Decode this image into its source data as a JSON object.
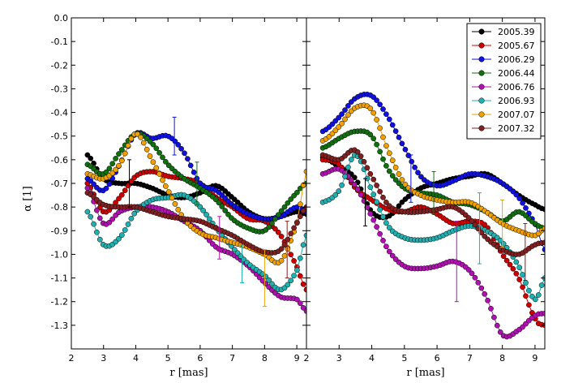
{
  "chart_data": {
    "type": "line",
    "xlabel": "r [mas]",
    "ylabel": "α [1]",
    "xlim": [
      2.0,
      9.3
    ],
    "ylim": [
      -1.4,
      0.0
    ],
    "x_ticks": [
      "2",
      "3",
      "4",
      "5",
      "6",
      "7",
      "8",
      "9"
    ],
    "y_ticks": [
      "0.0",
      "-0.1",
      "-0.2",
      "-0.3",
      "-0.4",
      "-0.5",
      "-0.6",
      "-0.7",
      "-0.8",
      "-0.9",
      "-1.0",
      "-1.1",
      "-1.2",
      "-1.3"
    ],
    "grid": false,
    "legend_position": "top-right",
    "series_style": {
      "colors": [
        "#000000",
        "#d00000",
        "#1010e0",
        "#107010",
        "#b010b0",
        "#20b0b0",
        "#f0a000",
        "#802020"
      ]
    },
    "panels": [
      {
        "series": [
          {
            "name": "2005.39",
            "x": [
              2.5,
              3.0,
              3.5,
              4.0,
              4.5,
              5.0,
              5.5,
              6.0,
              6.5,
              7.0,
              7.5,
              8.0,
              8.5,
              9.0,
              9.3
            ],
            "y": [
              -0.58,
              -0.68,
              -0.7,
              -0.7,
              -0.72,
              -0.75,
              -0.76,
              -0.74,
              -0.71,
              -0.76,
              -0.82,
              -0.85,
              -0.84,
              -0.82,
              -0.83
            ]
          },
          {
            "name": "2005.67",
            "x": [
              2.5,
              3.0,
              3.5,
              4.0,
              4.5,
              5.0,
              5.5,
              6.0,
              6.5,
              7.0,
              7.5,
              8.0,
              8.5,
              9.0,
              9.3
            ],
            "y": [
              -0.7,
              -0.82,
              -0.76,
              -0.67,
              -0.65,
              -0.67,
              -0.68,
              -0.7,
              -0.76,
              -0.8,
              -0.85,
              -0.86,
              -0.92,
              -1.05,
              -1.15
            ]
          },
          {
            "name": "2006.29",
            "x": [
              2.5,
              3.0,
              3.5,
              4.0,
              4.5,
              5.0,
              5.5,
              6.0,
              6.5,
              7.0,
              7.5,
              8.0,
              8.5,
              9.0,
              9.3
            ],
            "y": [
              -0.68,
              -0.73,
              -0.62,
              -0.49,
              -0.51,
              -0.5,
              -0.57,
              -0.7,
              -0.73,
              -0.79,
              -0.83,
              -0.85,
              -0.84,
              -0.8,
              -0.82
            ]
          },
          {
            "name": "2006.44",
            "x": [
              2.5,
              3.0,
              3.5,
              4.0,
              4.5,
              5.0,
              5.5,
              6.0,
              6.5,
              7.0,
              7.5,
              8.0,
              8.5,
              9.0,
              9.3
            ],
            "y": [
              -0.62,
              -0.66,
              -0.57,
              -0.49,
              -0.53,
              -0.62,
              -0.68,
              -0.72,
              -0.77,
              -0.85,
              -0.89,
              -0.9,
              -0.82,
              -0.74,
              -0.7
            ]
          },
          {
            "name": "2006.76",
            "x": [
              2.5,
              3.0,
              3.5,
              4.0,
              4.5,
              5.0,
              5.5,
              6.0,
              6.5,
              7.0,
              7.5,
              8.0,
              8.5,
              9.0,
              9.3
            ],
            "y": [
              -0.72,
              -0.87,
              -0.82,
              -0.8,
              -0.8,
              -0.82,
              -0.86,
              -0.9,
              -0.97,
              -1.0,
              -1.05,
              -1.12,
              -1.18,
              -1.19,
              -1.24
            ]
          },
          {
            "name": "2006.93",
            "x": [
              2.5,
              3.0,
              3.5,
              4.0,
              4.5,
              5.0,
              5.5,
              6.0,
              6.5,
              7.0,
              7.5,
              8.0,
              8.5,
              9.0,
              9.3
            ],
            "y": [
              -0.82,
              -0.96,
              -0.93,
              -0.82,
              -0.77,
              -0.76,
              -0.75,
              -0.8,
              -0.89,
              -0.97,
              -1.04,
              -1.09,
              -1.15,
              -1.07,
              -0.92
            ]
          },
          {
            "name": "2007.07",
            "x": [
              2.5,
              3.0,
              3.5,
              4.0,
              4.5,
              5.0,
              5.5,
              6.0,
              6.5,
              7.0,
              7.5,
              8.0,
              8.5,
              9.0,
              9.3
            ],
            "y": [
              -0.66,
              -0.68,
              -0.62,
              -0.49,
              -0.6,
              -0.73,
              -0.85,
              -0.91,
              -0.93,
              -0.95,
              -0.97,
              -1.0,
              -1.03,
              -0.87,
              -0.65
            ]
          },
          {
            "name": "2007.32",
            "x": [
              2.5,
              3.0,
              3.5,
              4.0,
              4.5,
              5.0,
              5.5,
              6.0,
              6.5,
              7.0,
              7.5,
              8.0,
              8.5,
              9.0,
              9.3
            ],
            "y": [
              -0.74,
              -0.79,
              -0.8,
              -0.8,
              -0.82,
              -0.84,
              -0.85,
              -0.86,
              -0.89,
              -0.92,
              -0.96,
              -0.99,
              -0.98,
              -0.87,
              -0.8
            ]
          }
        ],
        "error_bars": [
          {
            "series": "2005.39",
            "x": 3.8,
            "y": -0.7,
            "err": 0.1
          },
          {
            "series": "2006.29",
            "x": 5.2,
            "y": -0.5,
            "err": 0.08
          },
          {
            "series": "2006.44",
            "x": 5.9,
            "y": -0.7,
            "err": 0.09
          },
          {
            "series": "2006.76",
            "x": 6.6,
            "y": -0.93,
            "err": 0.09
          },
          {
            "series": "2006.93",
            "x": 7.3,
            "y": -1.04,
            "err": 0.08
          },
          {
            "series": "2007.07",
            "x": 8.0,
            "y": -1.1,
            "err": 0.12
          },
          {
            "series": "2007.32",
            "x": 8.7,
            "y": -0.98,
            "err": 0.12
          }
        ]
      },
      {
        "series": [
          {
            "name": "2005.39",
            "x": [
              2.5,
              3.0,
              3.5,
              4.0,
              4.5,
              5.0,
              5.5,
              6.0,
              6.5,
              7.0,
              7.5,
              8.0,
              8.5,
              9.0,
              9.3
            ],
            "y": [
              -0.59,
              -0.63,
              -0.68,
              -0.82,
              -0.84,
              -0.77,
              -0.72,
              -0.7,
              -0.68,
              -0.67,
              -0.66,
              -0.7,
              -0.75,
              -0.79,
              -0.81
            ]
          },
          {
            "name": "2005.67",
            "x": [
              2.5,
              3.0,
              3.5,
              4.0,
              4.5,
              5.0,
              5.5,
              6.0,
              6.5,
              7.0,
              7.5,
              8.0,
              8.5,
              9.0,
              9.3
            ],
            "y": [
              -0.6,
              -0.62,
              -0.72,
              -0.77,
              -0.81,
              -0.82,
              -0.8,
              -0.83,
              -0.87,
              -0.86,
              -0.88,
              -1.0,
              -1.1,
              -1.27,
              -1.3
            ]
          },
          {
            "name": "2006.29",
            "x": [
              2.5,
              3.0,
              3.5,
              4.0,
              4.5,
              5.0,
              5.5,
              6.0,
              6.5,
              7.0,
              7.5,
              8.0,
              8.5,
              9.0,
              9.3
            ],
            "y": [
              -0.48,
              -0.42,
              -0.34,
              -0.33,
              -0.42,
              -0.55,
              -0.67,
              -0.71,
              -0.69,
              -0.66,
              -0.67,
              -0.7,
              -0.76,
              -0.87,
              -0.98
            ]
          },
          {
            "name": "2006.44",
            "x": [
              2.5,
              3.0,
              3.5,
              4.0,
              4.5,
              5.0,
              5.5,
              6.0,
              6.5,
              7.0,
              7.5,
              8.0,
              8.5,
              9.0,
              9.3
            ],
            "y": [
              -0.55,
              -0.51,
              -0.48,
              -0.5,
              -0.64,
              -0.72,
              -0.74,
              -0.75,
              -0.78,
              -0.79,
              -0.82,
              -0.86,
              -0.82,
              -0.87,
              -0.89
            ]
          },
          {
            "name": "2006.76",
            "x": [
              2.5,
              3.0,
              3.5,
              4.0,
              4.5,
              5.0,
              5.5,
              6.0,
              6.5,
              7.0,
              7.5,
              8.0,
              8.5,
              9.0,
              9.3
            ],
            "y": [
              -0.66,
              -0.64,
              -0.71,
              -0.84,
              -0.98,
              -1.05,
              -1.06,
              -1.05,
              -1.03,
              -1.07,
              -1.18,
              -1.34,
              -1.32,
              -1.26,
              -1.25
            ]
          },
          {
            "name": "2006.93",
            "x": [
              2.5,
              3.0,
              3.5,
              4.0,
              4.5,
              5.0,
              5.5,
              6.0,
              6.5,
              7.0,
              7.5,
              8.0,
              8.5,
              9.0,
              9.3
            ],
            "y": [
              -0.78,
              -0.73,
              -0.58,
              -0.73,
              -0.88,
              -0.93,
              -0.94,
              -0.93,
              -0.9,
              -0.88,
              -0.9,
              -0.95,
              -1.05,
              -1.19,
              -1.1
            ]
          },
          {
            "name": "2007.07",
            "x": [
              2.5,
              3.0,
              3.5,
              4.0,
              4.5,
              5.0,
              5.5,
              6.0,
              6.5,
              7.0,
              7.5,
              8.0,
              8.5,
              9.0,
              9.3
            ],
            "y": [
              -0.52,
              -0.46,
              -0.38,
              -0.39,
              -0.56,
              -0.7,
              -0.75,
              -0.77,
              -0.78,
              -0.78,
              -0.82,
              -0.87,
              -0.9,
              -0.92,
              -0.89
            ]
          },
          {
            "name": "2007.32",
            "x": [
              2.5,
              3.0,
              3.5,
              4.0,
              4.5,
              5.0,
              5.5,
              6.0,
              6.5,
              7.0,
              7.5,
              8.0,
              8.5,
              9.0,
              9.3
            ],
            "y": [
              -0.58,
              -0.6,
              -0.56,
              -0.67,
              -0.79,
              -0.82,
              -0.82,
              -0.81,
              -0.8,
              -0.85,
              -0.93,
              -0.98,
              -1.0,
              -0.96,
              -0.95
            ]
          }
        ],
        "error_bars": [
          {
            "series": "2005.39",
            "x": 3.8,
            "y": -0.78,
            "err": 0.1
          },
          {
            "series": "2006.29",
            "x": 5.2,
            "y": -0.68,
            "err": 0.1
          },
          {
            "series": "2006.44",
            "x": 5.9,
            "y": -0.74,
            "err": 0.09
          },
          {
            "series": "2006.76",
            "x": 6.6,
            "y": -1.03,
            "err": 0.17
          },
          {
            "series": "2006.93",
            "x": 7.3,
            "y": -0.89,
            "err": 0.15
          },
          {
            "series": "2007.07",
            "x": 8.0,
            "y": -0.87,
            "err": 0.1
          },
          {
            "series": "2007.32",
            "x": 8.7,
            "y": -0.99,
            "err": 0.12
          }
        ]
      }
    ]
  }
}
